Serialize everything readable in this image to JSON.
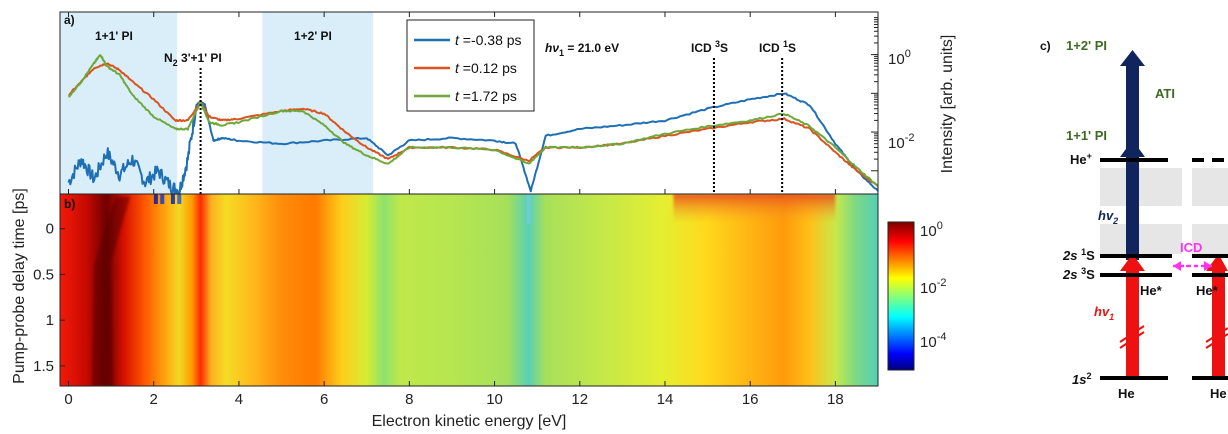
{
  "chart_data": [
    {
      "panel": "a)",
      "type": "line",
      "ylabel": "Intensity [arb. units]",
      "yscale": "log",
      "yticks": [
        "10^0",
        "10^-2"
      ],
      "xlim": [
        -0.2,
        19
      ],
      "ylim_log10": [
        -3.6,
        1.1
      ],
      "legend_position": "top-center",
      "shaded_regions": [
        {
          "label": "1+1' PI",
          "range": [
            -0.2,
            2.55
          ]
        },
        {
          "label": "1+2' PI",
          "range": [
            4.55,
            7.15
          ]
        }
      ],
      "annotations": [
        {
          "label_main": "N",
          "label_sub": "2",
          "label_rest": " 3'+1' PI",
          "x": 3.1
        },
        {
          "label": "ICD ³S",
          "x": 15.15
        },
        {
          "label": "ICD ¹S",
          "x": 16.75
        },
        {
          "label": "hν₁ = 21.0 eV"
        }
      ],
      "series": [
        {
          "name": "t = -0.38 ps",
          "t_value": "-0.38 ps",
          "color": "#1f6fb5",
          "x": [
            0,
            0.3,
            0.6,
            0.9,
            1.2,
            1.5,
            1.8,
            2.1,
            2.4,
            2.6,
            2.8,
            3.0,
            3.1,
            3.2,
            3.4,
            3.6,
            4.0,
            5.0,
            6.0,
            7.0,
            7.5,
            8.0,
            9.0,
            10.0,
            10.5,
            10.85,
            11.2,
            12.0,
            13.0,
            14.0,
            15.0,
            16.0,
            16.8,
            17.4,
            18.0,
            18.5,
            19.0
          ],
          "y": [
            0.0005,
            0.002,
            0.0006,
            0.003,
            0.0008,
            0.002,
            0.0005,
            0.001,
            0.0004,
            0.0003,
            0.002,
            0.05,
            0.06,
            0.05,
            0.006,
            0.007,
            0.006,
            0.005,
            0.006,
            0.007,
            0.0025,
            0.006,
            0.007,
            0.006,
            0.005,
            0.0003,
            0.008,
            0.012,
            0.015,
            0.02,
            0.04,
            0.07,
            0.1,
            0.05,
            0.005,
            0.001,
            0.0003
          ]
        },
        {
          "name": "t = 0.12 ps",
          "t_value": "0.12 ps",
          "color": "#d9541e",
          "x": [
            0,
            0.3,
            0.6,
            0.9,
            1.2,
            1.5,
            2.0,
            2.5,
            2.8,
            3.1,
            3.3,
            3.6,
            4.0,
            5.0,
            5.5,
            6.0,
            6.5,
            7.0,
            7.5,
            8.0,
            9.0,
            10.0,
            10.8,
            11.2,
            12.0,
            13.0,
            14.0,
            15.0,
            16.0,
            16.8,
            17.4,
            18.0,
            18.5,
            19.0
          ],
          "y": [
            0.09,
            0.2,
            0.45,
            0.6,
            0.4,
            0.2,
            0.07,
            0.02,
            0.02,
            0.06,
            0.025,
            0.02,
            0.022,
            0.035,
            0.04,
            0.03,
            0.01,
            0.004,
            0.002,
            0.004,
            0.004,
            0.0035,
            0.0018,
            0.004,
            0.004,
            0.005,
            0.008,
            0.012,
            0.018,
            0.022,
            0.012,
            0.003,
            0.001,
            0.0004
          ]
        },
        {
          "name": "t = 1.72 ps",
          "t_value": "1.72 ps",
          "color": "#6fa83a",
          "x": [
            0,
            0.3,
            0.6,
            0.75,
            0.9,
            1.2,
            1.5,
            2.0,
            2.5,
            2.8,
            3.1,
            3.3,
            3.6,
            4.0,
            5.0,
            5.5,
            6.0,
            6.5,
            7.0,
            7.5,
            8.0,
            9.0,
            10.0,
            10.8,
            11.2,
            12.0,
            13.0,
            14.0,
            15.0,
            16.0,
            16.8,
            17.4,
            18.0,
            18.5,
            19.0
          ],
          "y": [
            0.08,
            0.2,
            0.6,
            1.0,
            0.5,
            0.3,
            0.09,
            0.025,
            0.012,
            0.012,
            0.06,
            0.018,
            0.015,
            0.018,
            0.035,
            0.035,
            0.015,
            0.005,
            0.0025,
            0.0015,
            0.004,
            0.004,
            0.0035,
            0.0015,
            0.004,
            0.004,
            0.005,
            0.009,
            0.014,
            0.02,
            0.03,
            0.014,
            0.004,
            0.0012,
            0.0004
          ]
        }
      ]
    },
    {
      "panel": "b)",
      "type": "heatmap",
      "xlabel": "Electron kinetic energy [eV]",
      "ylabel": "Pump-probe delay time [ps]",
      "xlim": [
        -0.2,
        19
      ],
      "ylim": [
        -0.38,
        1.72
      ],
      "xticks": [
        0,
        2,
        4,
        6,
        8,
        10,
        12,
        14,
        16,
        18
      ],
      "yticks": [
        0,
        0.5,
        1,
        1.5
      ],
      "colorbar": {
        "scale": "log",
        "ticks": [
          "10^0",
          "10^-2",
          "10^-4"
        ],
        "colormap": "jet"
      }
    },
    {
      "panel": "c)",
      "type": "diagram",
      "labels": [
        "1+2' PI",
        "ATI",
        "1+1' PI",
        "He⁺",
        "hν₂",
        "2s ¹S",
        "2s ³S",
        "ICD",
        "He*",
        "hν₁",
        "1s²",
        "He"
      ]
    }
  ],
  "legend_entries": [
    {
      "prefix": "t",
      "value": "=-0.38 ps"
    },
    {
      "prefix": "t",
      "value": "=0.12 ps"
    },
    {
      "prefix": "t",
      "value": "=1.72 ps"
    }
  ],
  "text": {
    "panel_a": "a)",
    "panel_b": "b)",
    "panel_c": "c)",
    "region_1": "1+1' PI",
    "region_2": "1+2' PI",
    "n2_label": "N",
    "n2_sub": "2",
    "n2_rest": " 3'+1' PI",
    "photon": "hν",
    "photon_sub": "1",
    "photon_val": " = 21.0 eV",
    "icd3_a": "ICD ",
    "icd3_sup": "3",
    "icd3_b": "S",
    "icd1_a": "ICD ",
    "icd1_sup": "1",
    "icd1_b": "S",
    "ylabel_a": "Intensity [arb. units]",
    "ytick_a_top": "10",
    "ytick_a_top_exp": "0",
    "ytick_a_bot": "10",
    "ytick_a_bot_exp": "-2",
    "ylabel_b": "Pump-probe delay time [ps]",
    "xlabel_b": "Electron kinetic energy [eV]",
    "cbar_1": "10",
    "cbar_1_exp": "0",
    "cbar_2": "10",
    "cbar_2_exp": "-2",
    "cbar_3": "10",
    "cbar_3_exp": "-4",
    "c_1p2": "1+2' PI",
    "c_ati": "ATI",
    "c_1p1": "1+1' PI",
    "c_heplus": "He",
    "c_heplus_sup": "+",
    "c_hv2": "hv",
    "c_hv2_sub": "2",
    "c_2s1": "2s ",
    "c_2s1_sup": "1",
    "c_2s1_s": "S",
    "c_2s3": "2s ",
    "c_2s3_sup": "3",
    "c_2s3_s": "S",
    "c_icd": "ICD",
    "c_hestar": "He*",
    "c_hestar2": "He*",
    "c_hv1": "hv",
    "c_hv1_sub": "1",
    "c_1s2": "1s",
    "c_1s2_sup": "2",
    "c_he": "He",
    "c_he2": "He"
  },
  "colors": {
    "shade": "#d9eef8",
    "green_text": "#3d6b23",
    "navy": "#10245e",
    "red": "#ee1111",
    "magenta": "#ff33ee",
    "grey_box": "#e6e6e6"
  }
}
